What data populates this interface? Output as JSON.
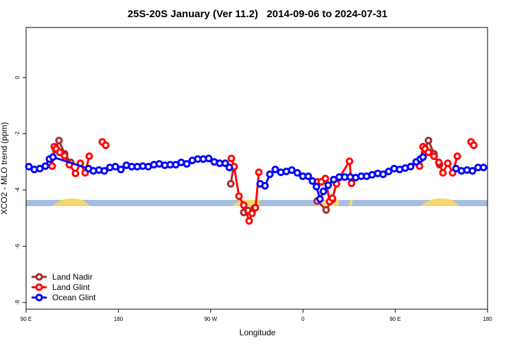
{
  "chart_data": {
    "type": "line",
    "title": "25S-20S January (Ver 11.2)   2014-09-06 to 2024-07-31",
    "x_label": "Longitude",
    "y_label": "XCO2 - MLO trend (ppm)",
    "xlim": [
      90,
      540
    ],
    "xticks": [
      {
        "value": 90,
        "label": "90 E"
      },
      {
        "value": 180,
        "label": "180"
      },
      {
        "value": 270,
        "label": "90 W"
      },
      {
        "value": 360,
        "label": "0"
      },
      {
        "value": 450,
        "label": "90 E"
      },
      {
        "value": 540,
        "label": "180"
      }
    ],
    "ylim": [
      -8.24,
      1.78
    ],
    "yticks": [
      -8,
      -6,
      -4,
      -2,
      0
    ],
    "legend": "bottom-left",
    "series": [
      {
        "name": "Land Nadir",
        "color": "#a52a2a",
        "x": [
          118.8,
          122.1,
          127.5,
          133.5,
          null,
          289.6,
          292.2,
          null,
          302.3,
          306.3,
          312.3,
          null,
          373.9,
          382.6,
          388.7,
          null,
          479.1,
          482.4,
          487.8,
          493.2
        ],
        "values": [
          -2.56,
          -2.24,
          -2.71,
          -3.02,
          null,
          -3.78,
          -3.2,
          null,
          -4.8,
          -4.73,
          -4.66,
          null,
          -4.39,
          -4.71,
          -4.34,
          null,
          -2.56,
          -2.24,
          -2.71,
          -3.1
        ]
      },
      {
        "name": "Land Glint",
        "color": "#ff0000",
        "x": [
          115.4,
          117.5,
          119.5,
          122.8,
          127.5,
          132.2,
          138.2,
          142.9,
          147.6,
          151.6,
          null,
          164.3,
          167.7,
          null,
          290.2,
          292.9,
          297.6,
          302.3,
          307.6,
          310.3,
          313.7,
          317.0,
          null,
          373.9,
          377.9,
          381.9,
          386.0,
          388.7,
          392.7,
          395.4,
          405.4,
          407.4,
          null,
          473.7,
          477.1,
          479.1,
          482.4,
          487.8,
          492.5,
          496.5,
          501.2,
          505.9,
          510.6,
          null,
          523.9,
          526.6
        ],
        "values": [
          -3.15,
          -2.46,
          -2.54,
          -2.66,
          -2.78,
          -3.1,
          -3.41,
          -3.05,
          -3.39,
          -2.8,
          null,
          -2.29,
          -2.41,
          null,
          -2.88,
          -3.17,
          -4.22,
          -4.54,
          -5.1,
          -4.83,
          -4.63,
          -3.37,
          null,
          -3.71,
          -3.71,
          -3.59,
          -4.41,
          -4.29,
          -3.78,
          -3.56,
          -2.98,
          -3.76,
          null,
          -3.15,
          -2.46,
          -2.54,
          -2.66,
          -2.8,
          -3.02,
          -3.39,
          -3.05,
          -3.39,
          -2.8,
          null,
          -2.29,
          -2.41
        ]
      },
      {
        "name": "Ocean Glint",
        "color": "#0000ff",
        "x": [
          92.7,
          98.0,
          103.4,
          108.8,
          112.8,
          116.2,
          150.9,
          155.6,
          161.0,
          166.3,
          171.7,
          177.1,
          182.4,
          187.8,
          193.1,
          198.5,
          203.8,
          209.2,
          214.6,
          219.9,
          225.3,
          230.6,
          236.0,
          241.3,
          246.7,
          252.1,
          257.4,
          262.8,
          268.1,
          273.5,
          278.8,
          284.2,
          288.2,
          null,
          318.3,
          323.0,
          327.7,
          333.0,
          338.4,
          343.8,
          349.1,
          354.5,
          359.8,
          365.2,
          369.2,
          373.2,
          376.6,
          379.9,
          384.6,
          390.0,
          395.4,
          400.7,
          406.1,
          411.4,
          416.8,
          422.1,
          427.5,
          432.9,
          438.2,
          443.6,
          448.9,
          454.3,
          459.7,
          465.0,
          470.4,
          474.4,
          477.1,
          null,
          509.3,
          514.6,
          520.0,
          525.3,
          530.7,
          536.1
        ],
        "values": [
          -3.17,
          -3.27,
          -3.24,
          -3.15,
          -2.9,
          -2.83,
          -3.24,
          -3.32,
          -3.29,
          -3.32,
          -3.2,
          -3.17,
          -3.27,
          -3.12,
          -3.17,
          -3.17,
          -3.15,
          -3.17,
          -3.1,
          -3.07,
          -3.12,
          -3.1,
          -3.1,
          -3.02,
          -3.07,
          -2.95,
          -2.9,
          -2.9,
          -2.88,
          -3.0,
          -3.05,
          -3.05,
          -3.2,
          null,
          -3.78,
          -3.85,
          -3.44,
          -3.27,
          -3.37,
          -3.34,
          -3.29,
          -3.39,
          -3.51,
          -3.51,
          -3.68,
          -3.88,
          -4.32,
          -4.05,
          -3.83,
          -3.63,
          -3.54,
          -3.54,
          -3.54,
          -3.56,
          -3.51,
          -3.51,
          -3.46,
          -3.41,
          -3.44,
          -3.34,
          -3.24,
          -3.27,
          -3.22,
          -3.17,
          -3.0,
          -2.9,
          -2.83,
          null,
          -3.24,
          -3.32,
          -3.29,
          -3.32,
          -3.2,
          -3.2
        ]
      }
    ]
  }
}
